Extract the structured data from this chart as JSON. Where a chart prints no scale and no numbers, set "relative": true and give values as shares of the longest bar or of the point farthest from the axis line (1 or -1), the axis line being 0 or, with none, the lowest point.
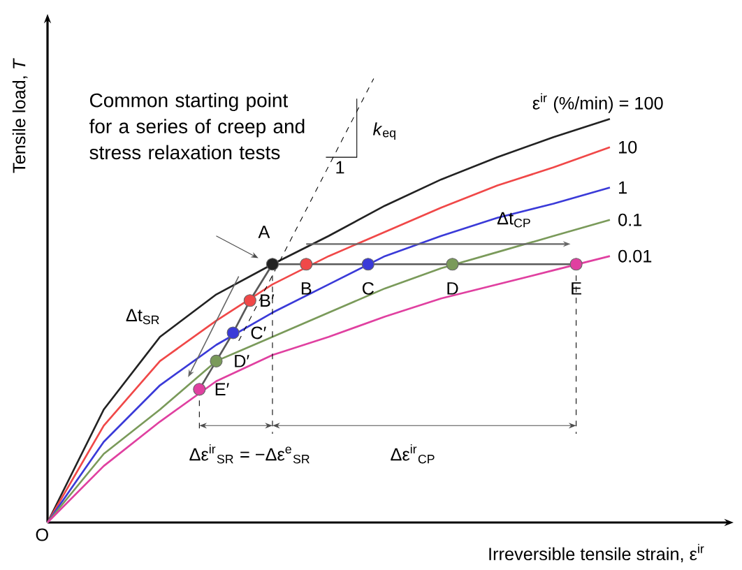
{
  "chart_data": {
    "type": "line",
    "relative": true,
    "xlabel": "Irreversible tensile strain, ε$^{ir}$",
    "ylabel": "Tensile load, *T*",
    "categories": [
      null,
      null,
      null,
      null,
      null,
      null,
      null,
      null,
      null,
      null,
      null
    ],
    "series": [
      {
        "name": "ε$^{ir}$ (%/min) = 100",
        "color": "#222222",
        "values": [
          0,
          0.28,
          0.46,
          0.565,
          0.64,
          0.71,
          0.785,
          0.85,
          0.905,
          0.955,
          1.0
        ]
      },
      {
        "name": "10",
        "color": "#f04848",
        "values": [
          0,
          0.24,
          0.4,
          0.5,
          0.59,
          0.66,
          0.72,
          0.78,
          0.835,
          0.88,
          0.93
        ]
      },
      {
        "name": "1",
        "color": "#3a3ad8",
        "values": [
          0,
          0.2,
          0.34,
          0.44,
          0.52,
          0.59,
          0.66,
          0.71,
          0.755,
          0.79,
          0.83
        ]
      },
      {
        "name": "0.1",
        "color": "#7a9a5a",
        "values": [
          0,
          0.17,
          0.28,
          0.4,
          0.46,
          0.52,
          0.58,
          0.63,
          0.67,
          0.71,
          0.75
        ]
      },
      {
        "name": "0.01",
        "color": "#e040a0",
        "values": [
          0,
          0.14,
          0.25,
          0.35,
          0.415,
          0.46,
          0.51,
          0.555,
          0.59,
          0.625,
          0.66
        ]
      }
    ],
    "annotations": [
      "Common starting point for a series of creep and stress relaxation tests",
      "O",
      "A",
      "B",
      "C",
      "D",
      "E",
      "B′",
      "C′",
      "D′",
      "E′",
      "Δt$_{SR}$",
      "Δt$_{CP}$",
      "Δε$^{ir}$$_{SR}$ = −Δε$^{e}$$_{SR}$",
      "Δε$^{ir}$$_{CP}$",
      "*k*$_{eq}$",
      "1"
    ]
  }
}
